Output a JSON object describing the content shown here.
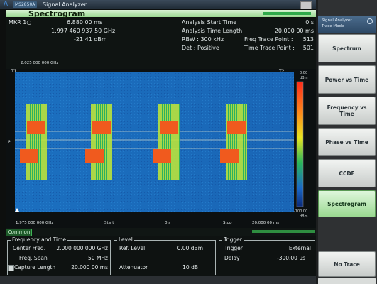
{
  "window": {
    "brand_glyph": "/\\",
    "app_badge": "MS2850A",
    "title": "Signal Analyzer"
  },
  "header": {
    "name": "Spectrogram"
  },
  "readout": {
    "marker_label": "MKR 1○",
    "marker_time": "6.880 00  ms",
    "marker_freq": "1.997 460 937 50  GHz",
    "marker_level": "-21.41  dBm",
    "start_time_label": "Analysis Start Time",
    "start_time_value": "0 s",
    "time_length_label": "Analysis Time Length",
    "time_length_value": "20.000 00 ms",
    "rbw": "RBW :   300 kHz",
    "freq_trace_label": "Freq Trace Point :",
    "freq_trace_value": "513",
    "det": "Det   :   Positive",
    "time_trace_label": "Time Trace Point :",
    "time_trace_value": "501",
    "top_freq": "2.025 000 000 GHz"
  },
  "plot": {
    "marker_t1": "T1",
    "marker_t2": "T2",
    "ytick_top": "0.00",
    "ytick_top_unit": "dBm",
    "ytick_bottom": "-100.00",
    "ytick_bottom_unit": "dBm",
    "x_start_freq": "1.975 000 000 GHz",
    "x_start": "Start",
    "x_zero": "0 s",
    "x_stop": "Stop",
    "x_stop_time": "20.000 00 ms",
    "left_p": "P"
  },
  "common_tab": "Common",
  "settings": {
    "freq_title": "Frequency and Time",
    "center_freq_label": "Center Freq.",
    "center_freq_value": "2.000 000 000 GHz",
    "span_label": "Freq. Span",
    "span_value": "50 MHz",
    "capture_label": "Capture Length",
    "capture_value": "20.000 00 ms",
    "level_title": "Level",
    "ref_level_label": "Ref. Level",
    "ref_level_value": "0.00 dBm",
    "attenuator_label": "Attenuator",
    "attenuator_value": "10 dB",
    "trigger_title": "Trigger",
    "trigger_label": "Trigger",
    "trigger_value": "External",
    "delay_label": "Delay",
    "delay_value": "-300.00 µs"
  },
  "right_panel": {
    "header_title": "Signal Analyzer",
    "header_sub": "Trace Mode",
    "buttons": [
      "Spectrum",
      "Power vs Time",
      "Frequency vs Time",
      "Phase vs Time",
      "CCDF",
      "Spectrogram",
      "No Trace"
    ]
  },
  "colors": {
    "active_green": "#9ad891",
    "plot_bg": "#1a72c2",
    "burst_orange": "#f05a1e"
  }
}
